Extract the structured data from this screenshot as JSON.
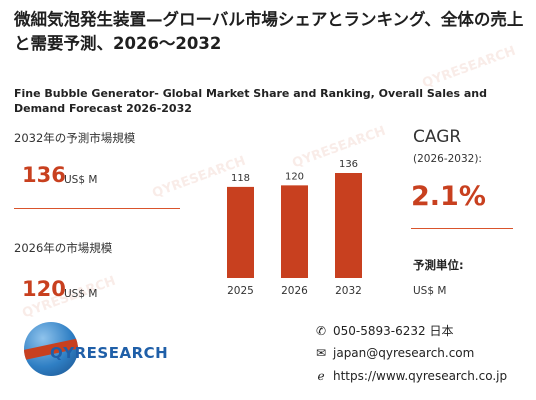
{
  "title_jp": "微細気泡発生装置—グローバル市場シェアとランキング、全体の売上と需要予測、2026〜2032",
  "title_en": "Fine Bubble Generator- Global Market Share and Ranking, Overall Sales and Demand Forecast 2026-2032",
  "forecast": {
    "label": "2032年の予測市場規模",
    "value": "136",
    "unit": "US$ M"
  },
  "current": {
    "label": "2026年の市場規模",
    "value": "120",
    "unit": "US$ M"
  },
  "cagr": {
    "title": "CAGR",
    "period": "(2026-2032):",
    "value": "2.1%"
  },
  "unit_info": {
    "heading": "予測単位:",
    "value": "US$ M"
  },
  "logo": {
    "text": "QYRESEARCH",
    "icon": "globe-icon"
  },
  "contact": {
    "phone": "050-5893-6232 日本",
    "email": "japan@qyresearch.com",
    "web": "https://www.qyresearch.co.jp"
  },
  "colors": {
    "accent": "#c8401f",
    "brand": "#1f5fa8"
  },
  "chart_data": {
    "type": "bar",
    "categories": [
      "2025",
      "2026",
      "2032"
    ],
    "values": [
      118,
      120,
      136
    ],
    "title": "",
    "xlabel": "",
    "ylabel": "",
    "ylim": [
      0,
      136
    ],
    "grid": false,
    "legend": "none"
  }
}
